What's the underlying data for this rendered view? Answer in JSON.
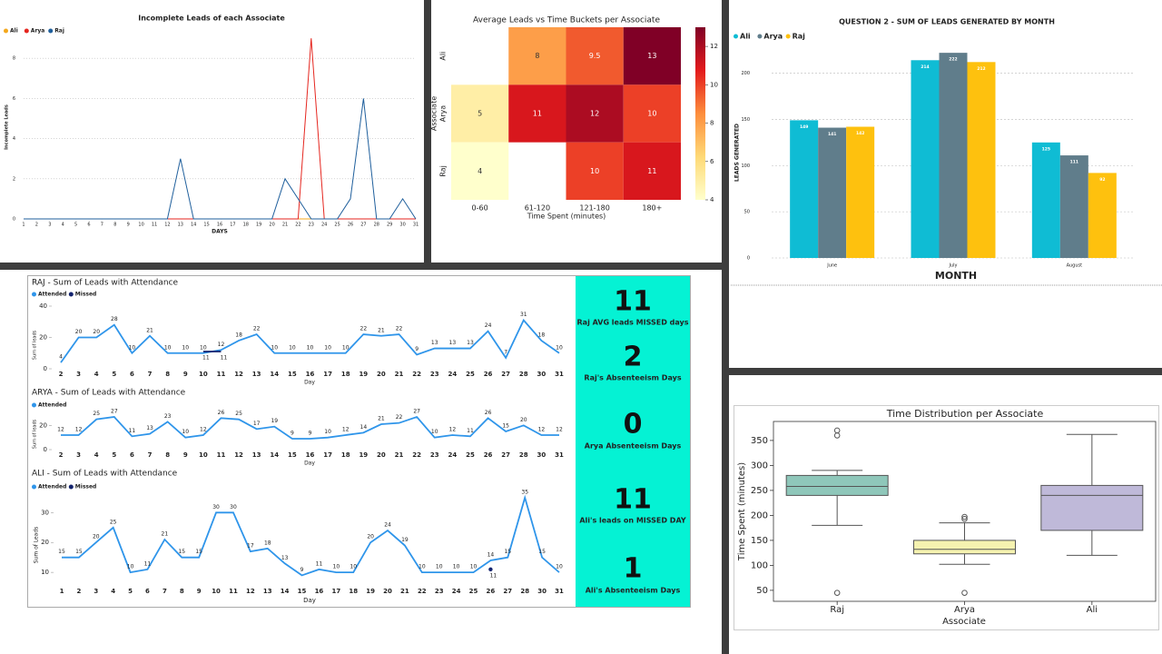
{
  "chart_data": [
    {
      "type": "line",
      "title": "Incomplete Leads of each Associate",
      "x_label": "DAYS",
      "y_label": "Incomplete Leads",
      "categories": [
        "1",
        "2",
        "3",
        "4",
        "5",
        "6",
        "7",
        "8",
        "9",
        "10",
        "11",
        "12",
        "13",
        "14",
        "15",
        "16",
        "17",
        "18",
        "19",
        "20",
        "21",
        "22",
        "23",
        "24",
        "25",
        "26",
        "27",
        "28",
        "29",
        "30",
        "31"
      ],
      "series": [
        {
          "name": "Ali",
          "color": "#f4a81d",
          "values": [
            0,
            0,
            0,
            0,
            0,
            0,
            0,
            0,
            0,
            0,
            0,
            0,
            0,
            0,
            0,
            0,
            0,
            0,
            0,
            0,
            0,
            0,
            0,
            0,
            0,
            0,
            0,
            0,
            0,
            0,
            0
          ]
        },
        {
          "name": "Arya",
          "color": "#e5261f",
          "values": [
            0,
            0,
            0,
            0,
            0,
            0,
            0,
            0,
            0,
            0,
            0,
            0,
            0,
            0,
            0,
            0,
            0,
            0,
            0,
            0,
            0,
            0,
            9,
            0,
            0,
            0,
            0,
            0,
            0,
            0,
            0
          ]
        },
        {
          "name": "Raj",
          "color": "#1f5f9c",
          "values": [
            0,
            0,
            0,
            0,
            0,
            0,
            0,
            0,
            0,
            0,
            0,
            0,
            3,
            0,
            0,
            0,
            0,
            0,
            0,
            0,
            2,
            1,
            0,
            0,
            0,
            1,
            6,
            0,
            0,
            1,
            0
          ]
        }
      ],
      "ylim": [
        0,
        10
      ],
      "yticks": [
        0,
        2,
        4,
        6,
        8
      ],
      "grid": true,
      "legend": "top-left"
    },
    {
      "type": "heatmap",
      "title": "Average Leads vs Time Buckets per Associate",
      "x_label": "Time Spent (minutes)",
      "y_label": "Associate",
      "categories": [
        "0-60",
        "61-120",
        "121-180",
        "180+"
      ],
      "rows": [
        "Ali",
        "Arya",
        "Raj"
      ],
      "values": [
        [
          null,
          8,
          9.5,
          13
        ],
        [
          5,
          11,
          12,
          10
        ],
        [
          4,
          null,
          10,
          11
        ]
      ],
      "colormap": "YlOrRd",
      "zlim": [
        4,
        13
      ],
      "zticks": [
        4,
        6,
        8,
        10,
        12
      ]
    },
    {
      "type": "bar",
      "title": "QUESTION 2 - SUM OF LEADS GENERATED BY MONTH",
      "x_label": "MONTH",
      "y_label": "LEADS GENERATED",
      "categories": [
        "June",
        "July",
        "August"
      ],
      "series": [
        {
          "name": "Ali",
          "color": "#0fbcd4",
          "values": [
            149,
            214,
            125
          ]
        },
        {
          "name": "Arya",
          "color": "#607d8b",
          "values": [
            141,
            222,
            111
          ]
        },
        {
          "name": "Raj",
          "color": "#fec10e",
          "values": [
            142,
            212,
            92
          ]
        }
      ],
      "ylim": [
        0,
        230
      ],
      "yticks": [
        0,
        50,
        100,
        150,
        200
      ],
      "grid": true,
      "legend": "top-left"
    },
    {
      "type": "line",
      "title": "RAJ - Sum of Leads with Attendance",
      "x_label": "Day",
      "y_label": "Sum of leads",
      "categories": [
        "2",
        "3",
        "4",
        "5",
        "6",
        "7",
        "8",
        "9",
        "10",
        "11",
        "12",
        "13",
        "14",
        "15",
        "16",
        "17",
        "18",
        "19",
        "20",
        "21",
        "22",
        "23",
        "24",
        "25",
        "26",
        "27",
        "28",
        "30",
        "31"
      ],
      "series": [
        {
          "name": "Attended",
          "color": "#2f95ea",
          "values": [
            4,
            20,
            20,
            28,
            10,
            21,
            10,
            10,
            10,
            12,
            18,
            22,
            10,
            10,
            10,
            10,
            10,
            22,
            21,
            22,
            9,
            13,
            13,
            13,
            24,
            7,
            31,
            18,
            10
          ]
        },
        {
          "name": "Missed",
          "color": "#13236e",
          "values": [
            null,
            null,
            null,
            null,
            null,
            null,
            null,
            null,
            11,
            11,
            null,
            null,
            null,
            null,
            null,
            null,
            null,
            null,
            null,
            null,
            null,
            null,
            null,
            null,
            null,
            null,
            null,
            null,
            null
          ]
        }
      ],
      "ylim": [
        0,
        40
      ],
      "yticks": [
        0,
        20,
        40
      ],
      "legend": "top-left"
    },
    {
      "type": "line",
      "title": "ARYA - Sum of Leads with Attendance",
      "x_label": "Day",
      "y_label": "Sum of leads",
      "categories": [
        "2",
        "3",
        "4",
        "5",
        "6",
        "7",
        "8",
        "9",
        "10",
        "11",
        "12",
        "13",
        "14",
        "15",
        "16",
        "17",
        "18",
        "19",
        "20",
        "21",
        "22",
        "23",
        "24",
        "25",
        "26",
        "27",
        "28",
        "30",
        "31"
      ],
      "series": [
        {
          "name": "Attended",
          "color": "#2f95ea",
          "values": [
            12,
            12,
            25,
            27,
            11,
            13,
            23,
            10,
            12,
            26,
            25,
            17,
            19,
            9,
            9,
            10,
            12,
            14,
            21,
            22,
            27,
            10,
            12,
            11,
            26,
            15,
            20,
            12,
            12
          ]
        }
      ],
      "ylim": [
        0,
        30
      ],
      "yticks": [
        0,
        20
      ],
      "legend": "top-left"
    },
    {
      "type": "line",
      "title": "ALI - Sum of Leads with Attendance",
      "x_label": "Day",
      "y_label": "Sum of Leads",
      "categories": [
        "1",
        "2",
        "3",
        "4",
        "5",
        "6",
        "7",
        "8",
        "9",
        "10",
        "11",
        "12",
        "13",
        "14",
        "15",
        "16",
        "17",
        "18",
        "19",
        "20",
        "21",
        "22",
        "23",
        "24",
        "25",
        "26",
        "27",
        "28",
        "30",
        "31"
      ],
      "series": [
        {
          "name": "Attended",
          "color": "#2f95ea",
          "values": [
            15,
            15,
            20,
            25,
            10,
            11,
            21,
            15,
            15,
            30,
            30,
            17,
            18,
            13,
            9,
            11,
            10,
            10,
            20,
            24,
            19,
            10,
            10,
            10,
            10,
            14,
            15,
            35,
            15,
            10
          ]
        },
        {
          "name": "Missed",
          "color": "#13236e",
          "values": [
            null,
            null,
            null,
            null,
            null,
            null,
            null,
            null,
            null,
            null,
            null,
            null,
            null,
            null,
            null,
            null,
            null,
            null,
            null,
            null,
            null,
            null,
            null,
            null,
            null,
            11,
            null,
            null,
            null,
            null
          ]
        }
      ],
      "ylim": [
        7,
        38
      ],
      "yticks": [
        10,
        20,
        30
      ],
      "legend": "top-left"
    },
    {
      "type": "box",
      "title": "Time Distribution per Associate",
      "x_label": "Associate",
      "y_label": "Time Spent (minutes)",
      "categories": [
        "Raj",
        "Arya",
        "Ali"
      ],
      "boxes": [
        {
          "color": "#8fc7ba",
          "whisker_low": 180,
          "q1": 240,
          "median": 258,
          "q3": 280,
          "whisker_high": 290,
          "outliers": [
            370,
            360,
            45
          ]
        },
        {
          "color": "#f5f2b0",
          "whisker_low": 102,
          "q1": 123,
          "median": 132,
          "q3": 150,
          "whisker_high": 185,
          "outliers": [
            197,
            193,
            45
          ]
        },
        {
          "color": "#bfb9d9",
          "whisker_low": 120,
          "q1": 170,
          "median": 240,
          "q3": 260,
          "whisker_high": 362,
          "outliers": []
        }
      ],
      "ylim": [
        28,
        388
      ],
      "yticks": [
        50,
        100,
        150,
        200,
        250,
        300,
        350
      ]
    }
  ],
  "kpis": [
    {
      "value": 11,
      "label": "Raj AVG leads MISSED days"
    },
    {
      "value": 2,
      "label": "Raj's Absenteeism Days"
    },
    {
      "value": 0,
      "label": "Arya Absenteeism Days"
    },
    {
      "value": 11,
      "label": "Ali's leads on MISSED DAY"
    },
    {
      "value": 1,
      "label": "Ali's Absenteeism Days"
    }
  ]
}
